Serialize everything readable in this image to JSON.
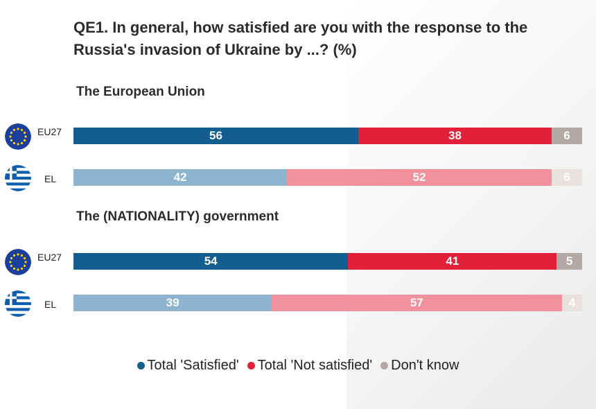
{
  "title": "QE1. In general, how satisfied are you with the response to the Russia's invasion of Ukraine by ...? (%)",
  "chart_data": {
    "type": "bar",
    "orientation": "horizontal",
    "stacked": true,
    "colors": {
      "eu27": [
        "#135e8e",
        "#e3203a",
        "#b3a8a4"
      ],
      "el": [
        "#8cb4cf",
        "#f0919d",
        "#e8e1de"
      ]
    },
    "legend": [
      "Total 'Satisfied'",
      "Total 'Not satisfied'",
      "Don't know"
    ],
    "legend_colors": [
      "#135e8e",
      "#e3203a",
      "#b3a8a4"
    ],
    "groups": [
      {
        "title": "The European Union",
        "rows": [
          {
            "label": "EU27",
            "flag": "eu-flag-icon",
            "values": [
              56,
              38,
              6
            ]
          },
          {
            "label": "EL",
            "flag": "greece-flag-icon",
            "values": [
              42,
              52,
              6
            ]
          }
        ]
      },
      {
        "title": "The (NATIONALITY) government",
        "rows": [
          {
            "label": "EU27",
            "flag": "eu-flag-icon",
            "values": [
              54,
              41,
              5
            ]
          },
          {
            "label": "EL",
            "flag": "greece-flag-icon",
            "values": [
              39,
              57,
              4
            ]
          }
        ]
      }
    ]
  }
}
